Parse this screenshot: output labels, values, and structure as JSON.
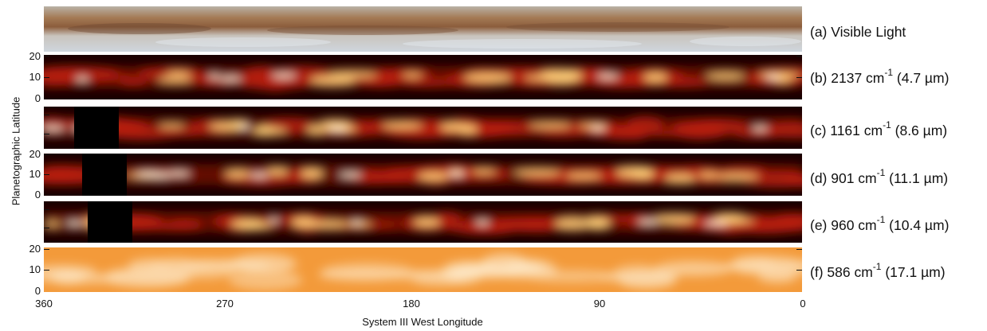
{
  "figure": {
    "xaxis": {
      "title": "System III West Longitude",
      "ticks": [
        "360",
        "270",
        "180",
        "90",
        "0"
      ]
    },
    "yaxis": {
      "title": "Planetographic Latitude",
      "ticks": [
        "20",
        "10",
        "0"
      ]
    },
    "panels": [
      {
        "id": "a",
        "label": "(a) Visible Light",
        "kind": "visible",
        "has_y_ticks": false
      },
      {
        "id": "b",
        "label_pre": "(b) 2137 cm",
        "sup": "-1",
        "label_post": " (4.7 µm)",
        "kind": "heat",
        "has_y_ticks": true,
        "masked_band": false
      },
      {
        "id": "c",
        "label_pre": "(c) 1161 cm",
        "sup": "-1",
        "label_post": " (8.6 µm)",
        "kind": "heat",
        "has_y_ticks": false,
        "masked_band": true
      },
      {
        "id": "d",
        "label_pre": "(d) 901 cm",
        "sup": "-1",
        "label_post": " (11.1 µm)",
        "kind": "heat",
        "has_y_ticks": true,
        "masked_band": true
      },
      {
        "id": "e",
        "label_pre": "(e) 960 cm",
        "sup": "-1",
        "label_post": " (10.4 µm)",
        "kind": "heat",
        "has_y_ticks": false,
        "masked_band": true
      },
      {
        "id": "f",
        "label_pre": "(f) 586 cm",
        "sup": "-1",
        "label_post": " (17.1 µm)",
        "kind": "warm",
        "has_y_ticks": true,
        "masked_band": false
      }
    ],
    "colors": {
      "heat_dark": "#1a0000",
      "heat_mid": "#b81e0a",
      "heat_hot": "#ffd27a",
      "heat_white": "#fff6e0",
      "warm_base": "#f39a3a"
    }
  }
}
